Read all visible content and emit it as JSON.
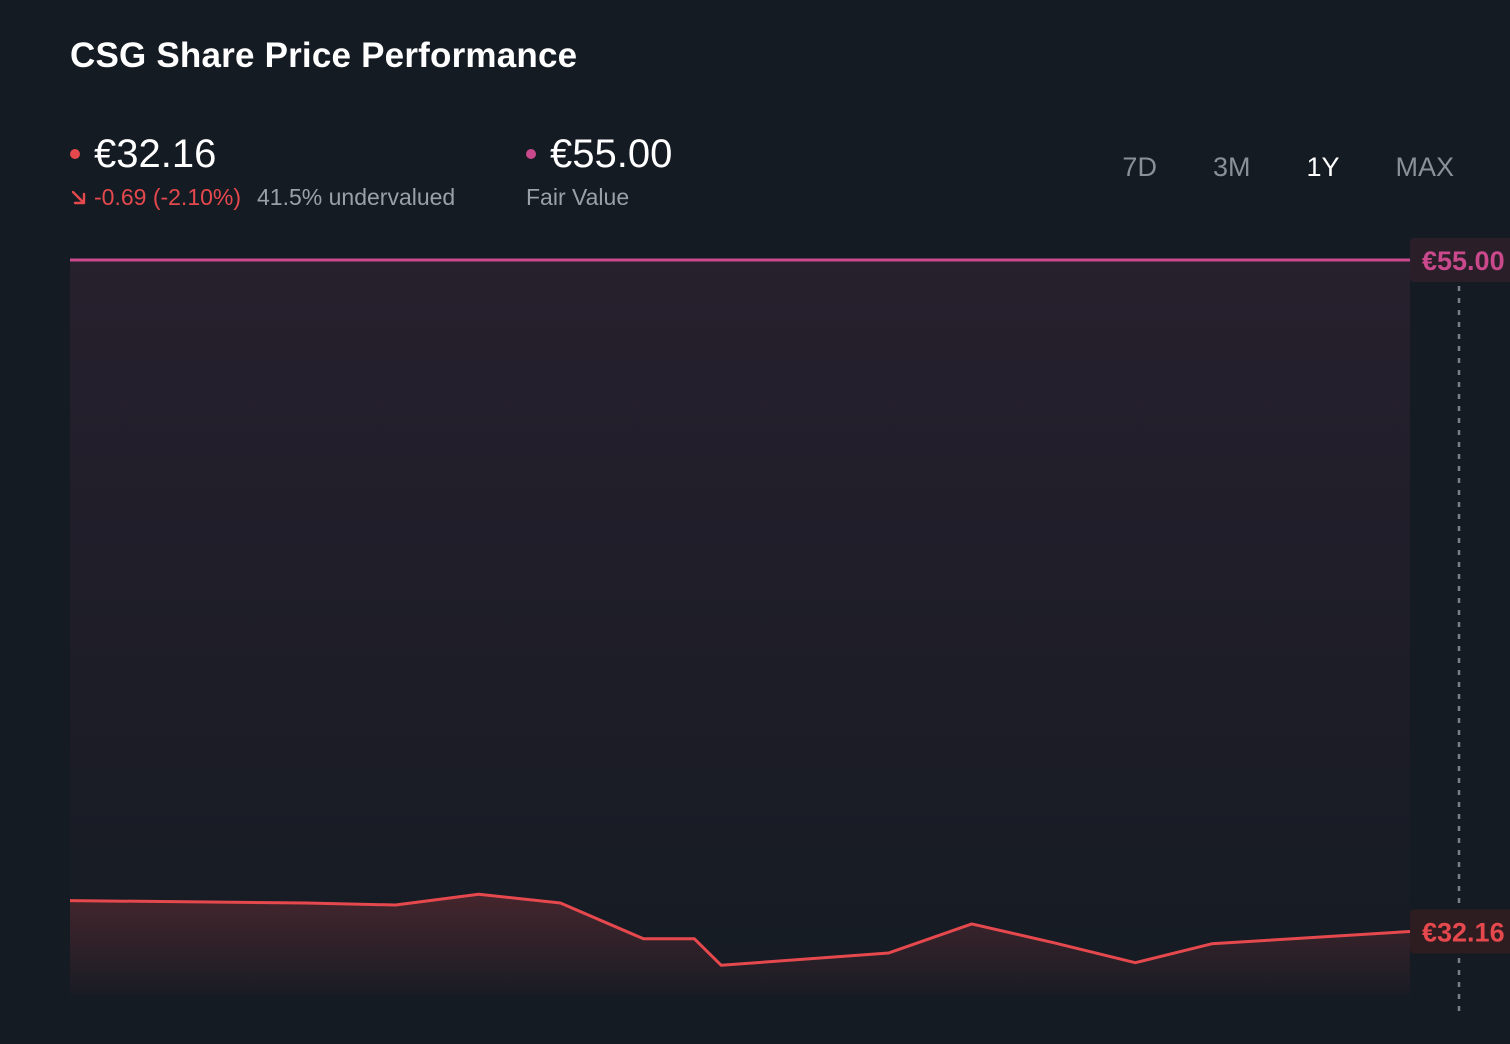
{
  "title": "CSG Share Price Performance",
  "current": {
    "price": "€32.16",
    "change": "-0.69 (-2.10%)",
    "valuation": "41.5% undervalued",
    "color": "#e5484d"
  },
  "fair_value": {
    "price": "€55.00",
    "label": "Fair Value",
    "color": "#c9498c"
  },
  "ranges": [
    {
      "label": "7D",
      "active": false
    },
    {
      "label": "3M",
      "active": false
    },
    {
      "label": "1Y",
      "active": true
    },
    {
      "label": "MAX",
      "active": false
    }
  ],
  "chart_data": {
    "type": "line",
    "title": "CSG Share Price Performance",
    "xlabel": "",
    "ylabel": "",
    "ylim": [
      30,
      55
    ],
    "grid": false,
    "series": [
      {
        "values": [
          33.21,
          33.13,
          33.06,
          33.43,
          33.13,
          31.91,
          31.91,
          31.01,
          31.43,
          32.42,
          31.78,
          31.1,
          31.74,
          32.16
        ]
      }
    ],
    "x_positions": [
      0,
      0.176,
      0.243,
      0.305,
      0.366,
      0.428,
      0.466,
      0.486,
      0.611,
      0.673,
      0.734,
      0.795,
      0.852,
      1.0
    ],
    "reference_lines": [
      {
        "name": "Fair Value",
        "value": 55.0,
        "label": "€55.00"
      }
    ],
    "end_label": "€32.16"
  }
}
